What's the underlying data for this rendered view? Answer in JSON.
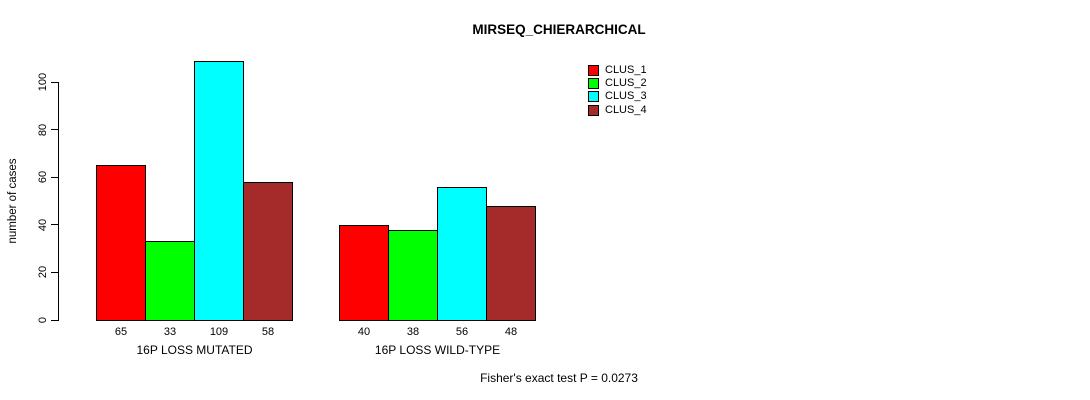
{
  "chart_data": {
    "type": "bar",
    "title": "MIRSEQ_CHIERARCHICAL",
    "xlabel": "",
    "ylabel": "number of cases",
    "ylim": [
      0,
      115
    ],
    "yticks": [
      0,
      20,
      40,
      60,
      80,
      100
    ],
    "grid": false,
    "legend_position": "top-right",
    "categories": [
      "16P LOSS MUTATED",
      "16P LOSS WILD-TYPE"
    ],
    "series": [
      {
        "name": "CLUS_1",
        "color": "#FF0000",
        "values": [
          65,
          40
        ]
      },
      {
        "name": "CLUS_2",
        "color": "#00FF00",
        "values": [
          33,
          38
        ]
      },
      {
        "name": "CLUS_3",
        "color": "#00FFFF",
        "values": [
          109,
          56
        ]
      },
      {
        "name": "CLUS_4",
        "color": "#A52A2A",
        "values": [
          58,
          48
        ]
      }
    ],
    "bar_value_labels": [
      [
        65,
        33,
        109,
        58
      ],
      [
        40,
        38,
        56,
        48
      ]
    ],
    "annotation": "Fisher's exact test P = 0.0273"
  },
  "colors": {
    "axis": "#000000",
    "background": "#FFFFFF",
    "bar_border": "#000000"
  }
}
